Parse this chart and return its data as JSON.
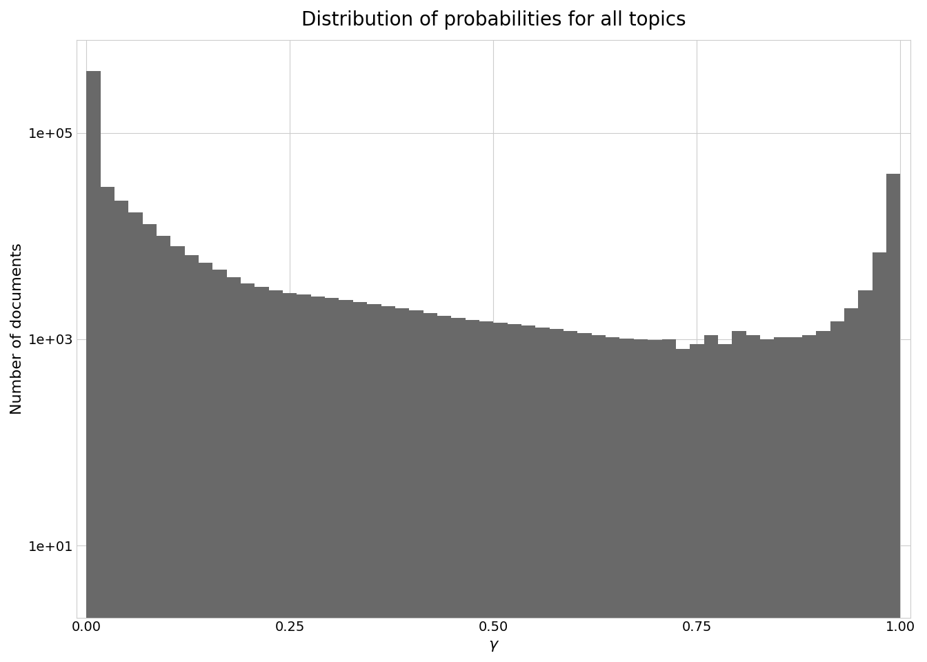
{
  "title": "Distribution of probabilities for all topics",
  "xlabel": "γ",
  "ylabel": "Number of documents",
  "bar_color": "#696969",
  "background_color": "#ffffff",
  "grid_color": "#cccccc",
  "title_fontsize": 20,
  "axis_label_fontsize": 16,
  "tick_fontsize": 14,
  "bar_heights": [
    400000,
    30000,
    22000,
    17000,
    13000,
    10000,
    8000,
    6500,
    5500,
    4700,
    4000,
    3500,
    3200,
    3000,
    2800,
    2700,
    2600,
    2500,
    2400,
    2300,
    2200,
    2100,
    2000,
    1900,
    1800,
    1700,
    1600,
    1550,
    1500,
    1450,
    1400,
    1350,
    1300,
    1250,
    1200,
    1150,
    1100,
    1050,
    1020,
    1000,
    980,
    1000,
    800,
    900,
    1100,
    900,
    1200,
    1100,
    1000,
    1050,
    1050,
    1100,
    1200,
    1500,
    2000,
    3000,
    7000,
    40000
  ],
  "xticks": [
    0.0,
    0.25,
    0.5,
    0.75,
    1.0
  ],
  "yticks": [
    10,
    1000,
    100000
  ],
  "ymin": 2,
  "ymax": 800000
}
